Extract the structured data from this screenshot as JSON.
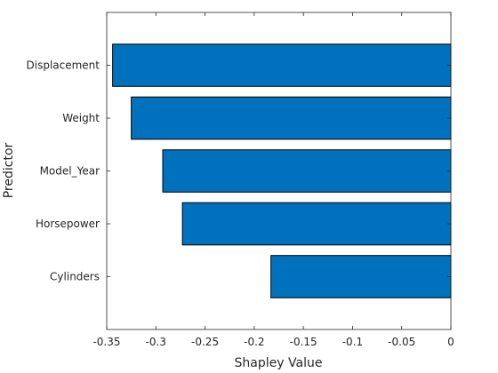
{
  "chart_data": {
    "type": "bar",
    "orientation": "horizontal",
    "title": "",
    "xlabel": "Shapley Value",
    "ylabel": "Predictor",
    "categories": [
      "Cylinders",
      "Horsepower",
      "Model_Year",
      "Weight",
      "Displacement"
    ],
    "values": [
      -0.183,
      -0.273,
      -0.293,
      -0.325,
      -0.344
    ],
    "xlim": [
      -0.35,
      0
    ],
    "xticks": [
      -0.35,
      -0.3,
      -0.25,
      -0.2,
      -0.15,
      -0.1,
      -0.05,
      0
    ],
    "xtick_labels": [
      "-0.35",
      "-0.3",
      "-0.25",
      "-0.2",
      "-0.15",
      "-0.1",
      "-0.05",
      "0"
    ],
    "bar_color": "#0072BD",
    "grid": false,
    "legend": "none"
  }
}
